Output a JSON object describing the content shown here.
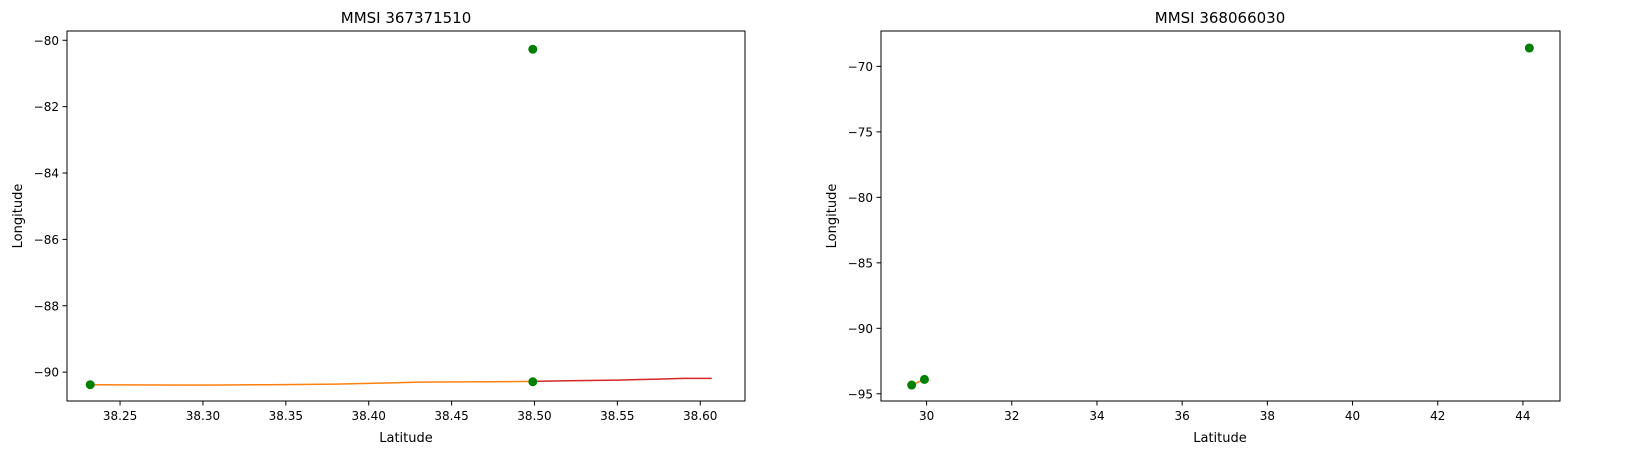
{
  "chart_data": [
    {
      "type": "line",
      "title": "MMSI 367371510",
      "xlabel": "Latitude",
      "ylabel": "Longitude",
      "xlim": [
        38.218,
        38.627
      ],
      "ylim": [
        -90.87,
        -79.72
      ],
      "xticks": [
        38.25,
        38.3,
        38.35,
        38.4,
        38.45,
        38.5,
        38.55,
        38.6
      ],
      "xtick_labels": [
        "38.25",
        "38.30",
        "38.35",
        "38.40",
        "38.45",
        "38.50",
        "38.55",
        "38.60"
      ],
      "yticks": [
        -90,
        -88,
        -86,
        -84,
        -82,
        -80
      ],
      "ytick_labels": [
        "−90",
        "−88",
        "−86",
        "−84",
        "−82",
        "−80"
      ],
      "grid": false,
      "series": [
        {
          "color": "#ff7f0e",
          "kind": "line",
          "x": [
            38.232,
            38.3,
            38.34,
            38.38,
            38.4,
            38.43,
            38.47,
            38.499
          ],
          "y": [
            -90.38,
            -90.39,
            -90.38,
            -90.36,
            -90.34,
            -90.3,
            -90.29,
            -90.28
          ]
        },
        {
          "color": "#d62728",
          "kind": "line",
          "x": [
            38.499,
            38.52,
            38.55,
            38.575,
            38.59,
            38.607
          ],
          "y": [
            -90.28,
            -90.26,
            -90.24,
            -90.21,
            -90.19,
            -90.19
          ]
        },
        {
          "color": "#008000",
          "kind": "scatter",
          "x": [
            38.232,
            38.499,
            38.499
          ],
          "y": [
            -90.38,
            -90.29,
            -80.27
          ]
        }
      ]
    },
    {
      "type": "line",
      "title": "MMSI 368066030",
      "xlabel": "Latitude",
      "ylabel": "Longitude",
      "xlim": [
        28.93,
        44.87
      ],
      "ylim": [
        -95.55,
        -67.3
      ],
      "xticks": [
        30,
        32,
        34,
        36,
        38,
        40,
        42,
        44
      ],
      "xtick_labels": [
        "30",
        "32",
        "34",
        "36",
        "38",
        "40",
        "42",
        "44"
      ],
      "yticks": [
        -95,
        -90,
        -85,
        -80,
        -75,
        -70
      ],
      "ytick_labels": [
        "−95",
        "−90",
        "−85",
        "−80",
        "−75",
        "−70"
      ],
      "grid": false,
      "series": [
        {
          "color": "#ff7f0e",
          "kind": "line",
          "x": [
            29.65,
            29.95
          ],
          "y": [
            -94.33,
            -93.9
          ]
        },
        {
          "color": "#008000",
          "kind": "scatter",
          "x": [
            29.65,
            29.95,
            44.15
          ],
          "y": [
            -94.33,
            -93.9,
            -68.6
          ]
        }
      ]
    }
  ]
}
